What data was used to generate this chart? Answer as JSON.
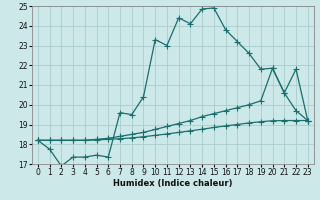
{
  "xlabel": "Humidex (Indice chaleur)",
  "bg_color": "#cce8e8",
  "grid_color": "#aacccc",
  "line_color": "#1a6e6e",
  "line_wavy_x": [
    0,
    1,
    2,
    3,
    4,
    5,
    6,
    7,
    8,
    9,
    10,
    11,
    12,
    13,
    14,
    15,
    16,
    17,
    18,
    19,
    20,
    21,
    22,
    23
  ],
  "line_wavy_y": [
    18.2,
    17.75,
    16.9,
    17.35,
    17.35,
    17.45,
    17.35,
    19.6,
    19.5,
    20.4,
    23.3,
    23.0,
    24.4,
    24.1,
    24.85,
    24.9,
    23.8,
    23.2,
    22.6,
    21.8,
    21.85,
    20.6,
    19.7,
    19.2
  ],
  "line_mid_x": [
    0,
    1,
    2,
    3,
    4,
    5,
    6,
    7,
    8,
    9,
    10,
    11,
    12,
    13,
    14,
    15,
    16,
    17,
    18,
    19,
    20,
    21,
    22,
    23
  ],
  "line_mid_y": [
    18.2,
    18.2,
    18.2,
    18.2,
    18.2,
    18.25,
    18.3,
    18.4,
    18.5,
    18.6,
    18.75,
    18.9,
    19.05,
    19.2,
    19.4,
    19.55,
    19.7,
    19.85,
    20.0,
    20.2,
    21.85,
    20.6,
    21.8,
    19.2
  ],
  "line_low_x": [
    0,
    1,
    2,
    3,
    4,
    5,
    6,
    7,
    8,
    9,
    10,
    11,
    12,
    13,
    14,
    15,
    16,
    17,
    18,
    19,
    20,
    21,
    22,
    23
  ],
  "line_low_y": [
    18.2,
    18.2,
    18.2,
    18.2,
    18.2,
    18.22,
    18.25,
    18.28,
    18.32,
    18.38,
    18.45,
    18.52,
    18.6,
    18.68,
    18.76,
    18.85,
    18.93,
    19.0,
    19.08,
    19.14,
    19.19,
    19.2,
    19.2,
    19.2
  ],
  "ylim": [
    17,
    25
  ],
  "xlim": [
    -0.5,
    23.5
  ],
  "yticks": [
    17,
    18,
    19,
    20,
    21,
    22,
    23,
    24,
    25
  ],
  "xticks": [
    0,
    1,
    2,
    3,
    4,
    5,
    6,
    7,
    8,
    9,
    10,
    11,
    12,
    13,
    14,
    15,
    16,
    17,
    18,
    19,
    20,
    21,
    22,
    23
  ]
}
